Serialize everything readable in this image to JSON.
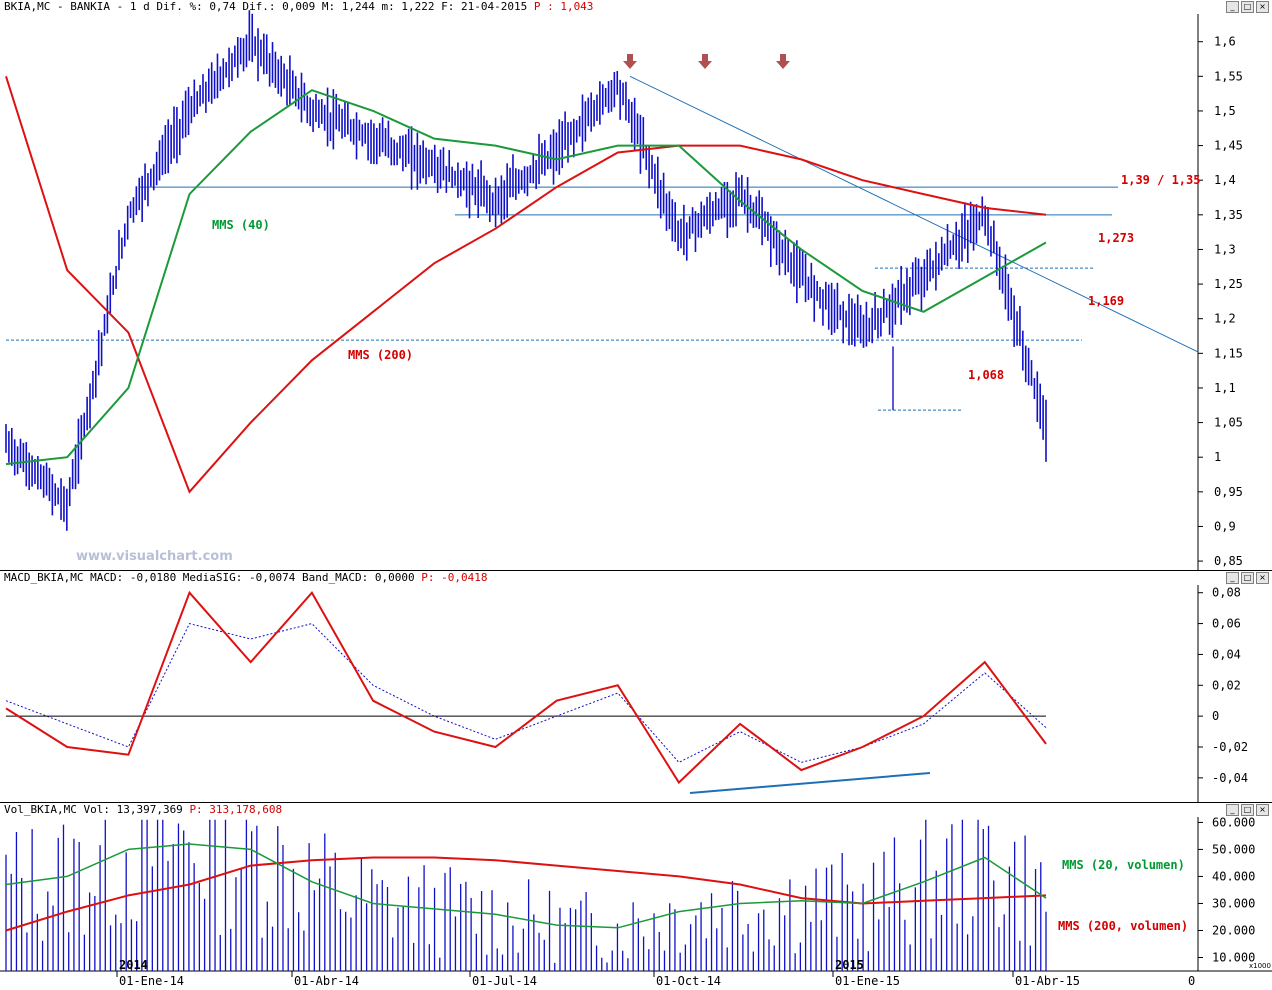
{
  "price_panel": {
    "header": {
      "symbol": "BKIA,MC - BANKIA -",
      "details": "1 d Dif. %: 0,74 Dif.: 0,009 M: 1,244 m: 1,222 F: 21-04-2015",
      "last": "P : 1,043"
    },
    "watermark": "www.visualchart.com",
    "labels": {
      "mms40": "MMS (40)",
      "mms200": "MMS (200)",
      "resistance": "1,39 / 1,35",
      "level_1273": "1,273",
      "level_1169": "1,169",
      "level_1068": "1,068"
    },
    "y_ticks": [
      "1,6",
      "1,55",
      "1,5",
      "1,45",
      "1,4",
      "1,35",
      "1,3",
      "1,25",
      "1,2",
      "1,15",
      "1,1",
      "1,05",
      "1",
      "0,95",
      "0,9",
      "0,85"
    ]
  },
  "macd_panel": {
    "header": {
      "text": "MACD_BKIA,MC MACD: -0,0180 MediaSIG: -0,0074 Band_MACD: 0,0000",
      "last": "P: -0,0418"
    },
    "y_ticks": [
      "0,08",
      "0,06",
      "0,04",
      "0,02",
      "0",
      "-0,02",
      "-0,04"
    ]
  },
  "volume_panel": {
    "header": {
      "text": "Vol_BKIA,MC Vol: 13,397,369",
      "last": "P: 313,178,608"
    },
    "labels": {
      "mms20": "MMS (20, volumen)",
      "mms200": "MMS (200, volumen)"
    },
    "y_ticks": [
      "60.000",
      "50.000",
      "40.000",
      "30.000",
      "20.000",
      "10.000"
    ],
    "unit": "x1000"
  },
  "x_axis": {
    "labels": [
      "01-Ene-14",
      "01-Abr-14",
      "01-Jul-14",
      "01-Oct-14",
      "01-Ene-15",
      "01-Abr-15"
    ],
    "years": [
      "2014",
      "2015"
    ],
    "zero": "0"
  },
  "colors": {
    "price": "#1010c8",
    "mms40": "#1a9a3a",
    "mms200": "#dd1111",
    "trend": "#1f6fb5",
    "arrow": "#b05050",
    "macd": "#dd1111",
    "signal": "#1010c8",
    "vol_bar": "#1010c8"
  },
  "chart_data": [
    {
      "type": "line",
      "title": "BKIA,MC - BANKIA - daily",
      "x": [
        "2013-11",
        "2013-12",
        "2014-01",
        "2014-02",
        "2014-03",
        "2014-04",
        "2014-05",
        "2014-06",
        "2014-07",
        "2014-08",
        "2014-09",
        "2014-10",
        "2014-11",
        "2014-12",
        "2015-01",
        "2015-02",
        "2015-03",
        "2015-04"
      ],
      "series": [
        {
          "name": "BKIA,MC",
          "values": [
            1.02,
            0.93,
            1.35,
            1.5,
            1.6,
            1.5,
            1.46,
            1.42,
            1.37,
            1.44,
            1.54,
            1.32,
            1.38,
            1.26,
            1.18,
            1.26,
            1.35,
            1.043
          ]
        },
        {
          "name": "MMS (40)",
          "values": [
            0.99,
            1.0,
            1.1,
            1.38,
            1.47,
            1.53,
            1.5,
            1.46,
            1.45,
            1.43,
            1.45,
            1.45,
            1.37,
            1.3,
            1.24,
            1.21,
            1.26,
            1.31
          ]
        },
        {
          "name": "MMS (200)",
          "values": [
            1.55,
            1.27,
            1.18,
            0.95,
            1.05,
            1.14,
            1.21,
            1.28,
            1.33,
            1.39,
            1.44,
            1.45,
            1.45,
            1.43,
            1.4,
            1.38,
            1.36,
            1.35
          ]
        }
      ],
      "ylim": [
        0.84,
        1.64
      ],
      "annotations": [
        "1,39 / 1,35",
        "1,273",
        "1,169",
        "1,068"
      ]
    },
    {
      "type": "line",
      "title": "MACD_BKIA,MC",
      "series": [
        {
          "name": "MACD",
          "values": [
            0.005,
            -0.02,
            -0.025,
            0.08,
            0.035,
            0.08,
            0.01,
            -0.01,
            -0.02,
            0.01,
            0.02,
            -0.043,
            -0.005,
            -0.035,
            -0.02,
            0.0,
            0.035,
            -0.018
          ]
        },
        {
          "name": "MediaSIG",
          "values": [
            0.01,
            -0.005,
            -0.02,
            0.06,
            0.05,
            0.06,
            0.02,
            0.0,
            -0.015,
            0.0,
            0.015,
            -0.03,
            -0.01,
            -0.03,
            -0.02,
            -0.005,
            0.028,
            -0.0074
          ]
        }
      ],
      "ylim": [
        -0.055,
        0.085
      ]
    },
    {
      "type": "bar",
      "title": "Vol_BKIA,MC (x1000)",
      "series": [
        {
          "name": "MMS (20, volumen)",
          "values": [
            37000,
            40000,
            50000,
            52000,
            50000,
            38000,
            30000,
            28000,
            26000,
            22000,
            21000,
            27000,
            30000,
            31000,
            30000,
            38000,
            47000,
            32000
          ]
        },
        {
          "name": "MMS (200, volumen)",
          "values": [
            20000,
            27000,
            33000,
            37000,
            44000,
            46000,
            47000,
            47000,
            46000,
            44000,
            42000,
            40000,
            37000,
            32000,
            30000,
            31000,
            32000,
            33000
          ]
        }
      ],
      "ylim": [
        5000,
        62000
      ]
    }
  ]
}
